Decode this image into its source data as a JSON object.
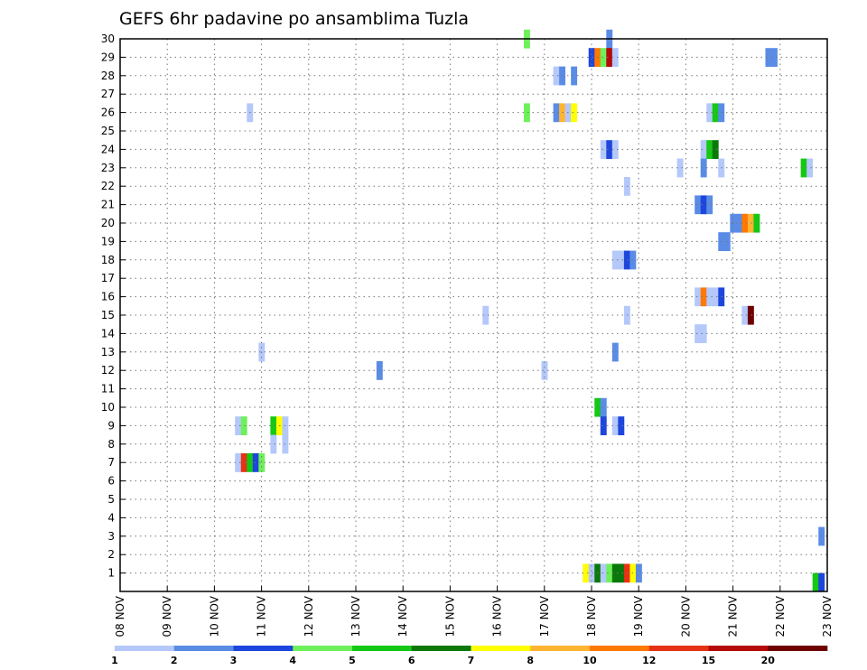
{
  "chart_data": {
    "type": "heatmap",
    "title": "GEFS 6hr padavine po ansamblima Tuzla",
    "x_tick_labels": [
      "08 NOV",
      "09 NOV",
      "10 NOV",
      "11 NOV",
      "12 NOV",
      "13 NOV",
      "14 NOV",
      "15 NOV",
      "16 NOV",
      "17 NOV",
      "18 NOV",
      "19 NOV",
      "20 NOV",
      "21 NOV",
      "22 NOV",
      "23 NOV"
    ],
    "x_unit": "6-hour steps since 08 NOV 00Z",
    "y_tick_labels": [
      "1",
      "2",
      "3",
      "4",
      "5",
      "6",
      "7",
      "8",
      "9",
      "10",
      "11",
      "12",
      "13",
      "14",
      "15",
      "16",
      "17",
      "18",
      "19",
      "20",
      "21",
      "22",
      "23",
      "24",
      "25",
      "26",
      "27",
      "28",
      "29",
      "30"
    ],
    "ylim": [
      0,
      30
    ],
    "xlim": [
      0,
      60
    ],
    "grid": true,
    "colorbar": {
      "placement": "bottom",
      "labels": [
        "1",
        "2",
        "3",
        "4",
        "5",
        "6",
        "7",
        "8",
        "10",
        "12",
        "15",
        "20"
      ],
      "colors": [
        "#b4c8fa",
        "#5a8ce6",
        "#1e46dc",
        "#6ef05a",
        "#14c814",
        "#0a780a",
        "#ffff00",
        "#ffb432",
        "#ff7800",
        "#e63214",
        "#b40a0a",
        "#6e0000"
      ]
    },
    "cells": [
      {
        "x": 34.5,
        "y": 30,
        "c": 3
      },
      {
        "x": 41.5,
        "y": 30,
        "c": 1
      },
      {
        "x": 40,
        "y": 29,
        "c": 2
      },
      {
        "x": 40.5,
        "y": 29,
        "c": 8
      },
      {
        "x": 41,
        "y": 29,
        "c": 3
      },
      {
        "x": 41.5,
        "y": 29,
        "c": 10
      },
      {
        "x": 42,
        "y": 29,
        "c": 0
      },
      {
        "x": 55,
        "y": 29,
        "c": 1
      },
      {
        "x": 55.5,
        "y": 29,
        "c": 1
      },
      {
        "x": 37,
        "y": 28,
        "c": 0
      },
      {
        "x": 37.5,
        "y": 28,
        "c": 1
      },
      {
        "x": 38.5,
        "y": 28,
        "c": 1
      },
      {
        "x": 11,
        "y": 26,
        "c": 0
      },
      {
        "x": 34.5,
        "y": 26,
        "c": 3
      },
      {
        "x": 37,
        "y": 26,
        "c": 1
      },
      {
        "x": 37.5,
        "y": 26,
        "c": 7
      },
      {
        "x": 38,
        "y": 26,
        "c": 0
      },
      {
        "x": 38.5,
        "y": 26,
        "c": 6
      },
      {
        "x": 50,
        "y": 26,
        "c": 0
      },
      {
        "x": 50.5,
        "y": 26,
        "c": 4
      },
      {
        "x": 51,
        "y": 26,
        "c": 1
      },
      {
        "x": 41,
        "y": 24,
        "c": 0
      },
      {
        "x": 41.5,
        "y": 24,
        "c": 2
      },
      {
        "x": 42,
        "y": 24,
        "c": 0
      },
      {
        "x": 49.5,
        "y": 24,
        "c": 0
      },
      {
        "x": 50,
        "y": 24,
        "c": 4
      },
      {
        "x": 50.5,
        "y": 24,
        "c": 5
      },
      {
        "x": 47.5,
        "y": 23,
        "c": 0
      },
      {
        "x": 49.5,
        "y": 23,
        "c": 1
      },
      {
        "x": 51,
        "y": 23,
        "c": 0
      },
      {
        "x": 58,
        "y": 23,
        "c": 4
      },
      {
        "x": 58.5,
        "y": 23,
        "c": 0
      },
      {
        "x": 43,
        "y": 22,
        "c": 0
      },
      {
        "x": 49,
        "y": 21,
        "c": 1
      },
      {
        "x": 49.5,
        "y": 21,
        "c": 2
      },
      {
        "x": 50,
        "y": 21,
        "c": 1
      },
      {
        "x": 52,
        "y": 20,
        "c": 1
      },
      {
        "x": 52.5,
        "y": 20,
        "c": 1
      },
      {
        "x": 53,
        "y": 20,
        "c": 8
      },
      {
        "x": 53.5,
        "y": 20,
        "c": 7
      },
      {
        "x": 54,
        "y": 20,
        "c": 4
      },
      {
        "x": 51,
        "y": 19,
        "c": 1
      },
      {
        "x": 51.5,
        "y": 19,
        "c": 1
      },
      {
        "x": 42,
        "y": 18,
        "c": 0
      },
      {
        "x": 42.5,
        "y": 18,
        "c": 0
      },
      {
        "x": 43,
        "y": 18,
        "c": 2
      },
      {
        "x": 43.5,
        "y": 18,
        "c": 1
      },
      {
        "x": 49,
        "y": 16,
        "c": 0
      },
      {
        "x": 49.5,
        "y": 16,
        "c": 8
      },
      {
        "x": 50,
        "y": 16,
        "c": 0
      },
      {
        "x": 50.5,
        "y": 16,
        "c": 0
      },
      {
        "x": 51,
        "y": 16,
        "c": 2
      },
      {
        "x": 31,
        "y": 15,
        "c": 0
      },
      {
        "x": 43,
        "y": 15,
        "c": 0
      },
      {
        "x": 53,
        "y": 15,
        "c": 0
      },
      {
        "x": 53.5,
        "y": 15,
        "c": 11
      },
      {
        "x": 49,
        "y": 14,
        "c": 0
      },
      {
        "x": 49.5,
        "y": 14,
        "c": 0
      },
      {
        "x": 12,
        "y": 13,
        "c": 0
      },
      {
        "x": 42,
        "y": 13,
        "c": 1
      },
      {
        "x": 22,
        "y": 12,
        "c": 1
      },
      {
        "x": 36,
        "y": 12,
        "c": 0
      },
      {
        "x": 40.5,
        "y": 10,
        "c": 4
      },
      {
        "x": 41,
        "y": 10,
        "c": 1
      },
      {
        "x": 10,
        "y": 9,
        "c": 0
      },
      {
        "x": 10.5,
        "y": 9,
        "c": 3
      },
      {
        "x": 13,
        "y": 9,
        "c": 4
      },
      {
        "x": 13.5,
        "y": 9,
        "c": 6
      },
      {
        "x": 14,
        "y": 9,
        "c": 0
      },
      {
        "x": 41,
        "y": 9,
        "c": 2
      },
      {
        "x": 42,
        "y": 9,
        "c": 0
      },
      {
        "x": 42.5,
        "y": 9,
        "c": 2
      },
      {
        "x": 13,
        "y": 8,
        "c": 0
      },
      {
        "x": 14,
        "y": 8,
        "c": 0
      },
      {
        "x": 10,
        "y": 7,
        "c": 0
      },
      {
        "x": 10.5,
        "y": 7,
        "c": 9
      },
      {
        "x": 11,
        "y": 7,
        "c": 4
      },
      {
        "x": 11.5,
        "y": 7,
        "c": 2
      },
      {
        "x": 12,
        "y": 7,
        "c": 3
      },
      {
        "x": 59.5,
        "y": 3,
        "c": 1
      },
      {
        "x": 39.5,
        "y": 1,
        "c": 6
      },
      {
        "x": 40,
        "y": 1,
        "c": 0
      },
      {
        "x": 40.5,
        "y": 1,
        "c": 5
      },
      {
        "x": 41,
        "y": 1,
        "c": 0
      },
      {
        "x": 41.5,
        "y": 1,
        "c": 3
      },
      {
        "x": 42,
        "y": 1,
        "c": 5
      },
      {
        "x": 42.5,
        "y": 1,
        "c": 5
      },
      {
        "x": 43,
        "y": 1,
        "c": 9
      },
      {
        "x": 43.5,
        "y": 1,
        "c": 6
      },
      {
        "x": 44,
        "y": 1,
        "c": 1
      },
      {
        "x": 59,
        "y": 0.5,
        "c": 4
      },
      {
        "x": 59.5,
        "y": 0.5,
        "c": 2
      }
    ]
  }
}
